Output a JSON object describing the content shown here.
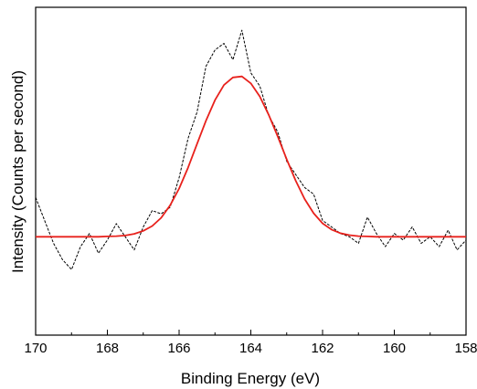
{
  "chart_data": {
    "type": "line",
    "title": "",
    "xlabel": "Binding Energy (eV)",
    "ylabel": "Intensity (Counts per second)",
    "xlim": [
      170,
      158
    ],
    "x_reversed": true,
    "ylim": [
      0,
      100
    ],
    "y_ticks_shown": false,
    "grid": false,
    "legend": "none",
    "x_ticks": [
      170,
      168,
      166,
      164,
      162,
      160,
      158
    ],
    "x_tick_labels": [
      "170",
      "168",
      "166",
      "164",
      "162",
      "160",
      "158"
    ],
    "series": [
      {
        "style": "dashed",
        "color": "#000000",
        "x": [
          170.0,
          169.75,
          169.5,
          169.25,
          169.0,
          168.75,
          168.5,
          168.25,
          168.0,
          167.75,
          167.5,
          167.25,
          167.0,
          166.75,
          166.5,
          166.25,
          166.0,
          165.75,
          165.5,
          165.25,
          165.0,
          164.75,
          164.5,
          164.25,
          164.0,
          163.75,
          163.5,
          163.25,
          163.0,
          162.75,
          162.5,
          162.25,
          162.0,
          161.75,
          161.5,
          161.25,
          161.0,
          160.75,
          160.5,
          160.25,
          160.0,
          159.75,
          159.5,
          159.25,
          159.0,
          158.75,
          158.5,
          158.25,
          158.0
        ],
        "y": [
          42,
          35,
          28,
          23,
          20,
          27,
          31,
          25,
          29,
          34,
          30,
          26,
          33,
          38,
          37,
          39,
          48,
          60,
          68,
          82,
          87,
          89,
          84,
          93,
          80,
          76,
          67,
          62,
          53,
          49,
          45,
          43,
          35,
          33,
          31,
          30,
          28,
          36,
          31,
          27,
          31,
          29,
          33,
          28,
          30,
          27,
          32,
          26,
          29
        ]
      },
      {
        "style": "solid",
        "color": "#e8211c",
        "x": [
          170.0,
          169.75,
          169.5,
          169.25,
          169.0,
          168.75,
          168.5,
          168.25,
          168.0,
          167.75,
          167.5,
          167.25,
          167.0,
          166.75,
          166.5,
          166.25,
          166.0,
          165.75,
          165.5,
          165.25,
          165.0,
          164.75,
          164.5,
          164.25,
          164.0,
          163.75,
          163.5,
          163.25,
          163.0,
          162.75,
          162.5,
          162.25,
          162.0,
          161.75,
          161.5,
          161.25,
          161.0,
          160.75,
          160.5,
          160.25,
          160.0,
          159.75,
          159.5,
          159.25,
          159.0,
          158.75,
          158.5,
          158.25,
          158.0
        ],
        "y": [
          30,
          30,
          30,
          30,
          30,
          30,
          30,
          30,
          30.1,
          30.2,
          30.4,
          30.9,
          31.8,
          33.3,
          35.8,
          39.6,
          44.7,
          51.1,
          58.3,
          65.4,
          71.7,
          76.3,
          78.6,
          78.9,
          76.8,
          72.8,
          67.2,
          60.6,
          53.6,
          47.1,
          41.5,
          37.2,
          34.1,
          32.2,
          31.1,
          30.5,
          30.2,
          30.1,
          30,
          30,
          30,
          30,
          30,
          30,
          30,
          30,
          30,
          30,
          30
        ]
      }
    ]
  }
}
